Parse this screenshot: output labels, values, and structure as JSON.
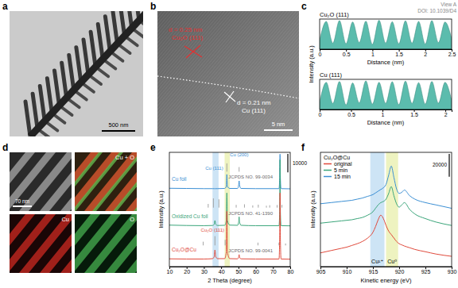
{
  "panel_labels": [
    "a",
    "b",
    "c",
    "d",
    "e",
    "f"
  ],
  "watermark": [
    "View A",
    "DOI: 10.1039/D4"
  ],
  "images": {
    "a": {
      "scale_bar": "500 nm"
    },
    "b": {
      "scale_bar": "5 nm",
      "annotations": [
        "d = 0.25 nm",
        "Cu₂O (111)",
        "d = 0.21 nm",
        "Cu (111)"
      ]
    },
    "d": {
      "scale_bar": "70 nm",
      "tiles": [
        "Cu + O",
        "Cu",
        "O"
      ]
    }
  },
  "chart_data": [
    {
      "type": "area",
      "title": "Cu₂O (111)",
      "x_label": "Distance (nm)",
      "y_label": "Intensity (a.u.)",
      "x": [
        0,
        0.125,
        0.25,
        0.375,
        0.5,
        0.625,
        0.75,
        0.875,
        1,
        1.125,
        1.25,
        1.375,
        1.5,
        1.625,
        1.75,
        1.875,
        2,
        2.125,
        2.25,
        2.375,
        2.5
      ],
      "values": [
        0.3,
        0.92,
        0.2,
        0.95,
        0.18,
        0.9,
        0.22,
        0.93,
        0.16,
        0.96,
        0.2,
        0.91,
        0.18,
        0.94,
        0.2,
        0.92,
        0.17,
        0.95,
        0.22,
        0.9,
        0.35
      ],
      "color": "#5bbcad",
      "xlim": [
        0,
        2.5
      ],
      "xticks": [
        0,
        0.5,
        1,
        1.5,
        2,
        2.5
      ],
      "ylim": [
        0,
        1
      ],
      "tick_labels": "x"
    },
    {
      "type": "area",
      "title": "Cu (111)",
      "x_label": "Distance (nm)",
      "x": [
        0,
        0.105,
        0.21,
        0.315,
        0.42,
        0.525,
        0.63,
        0.735,
        0.84,
        0.945,
        1.05,
        1.155,
        1.26,
        1.365,
        1.47,
        1.575,
        1.68,
        1.785,
        1.89,
        1.995,
        2.1
      ],
      "values": [
        0.25,
        0.9,
        0.2,
        0.93,
        0.15,
        0.88,
        0.22,
        0.95,
        0.18,
        0.9,
        0.2,
        0.92,
        0.16,
        0.94,
        0.2,
        0.89,
        0.18,
        0.93,
        0.21,
        0.9,
        0.3
      ],
      "color": "#5bbcad",
      "xlim": [
        0,
        2.1
      ],
      "xticks": [
        0,
        0.5,
        1,
        1.5,
        2
      ],
      "ylim": [
        0,
        1
      ],
      "tick_labels": "x"
    },
    {
      "type": "line",
      "x_label": "2 Theta (degree)",
      "y_label": "Intensity (a.u.)",
      "x": [
        10,
        20,
        30,
        35,
        36,
        36.4,
        36.8,
        38,
        42,
        43,
        43.3,
        43.6,
        45,
        49.5,
        50.1,
        50.4,
        50.7,
        51.5,
        60,
        73.5,
        73.9,
        74.1,
        74.3,
        74.7,
        80
      ],
      "series": [
        {
          "name": "Cu foil",
          "color": "#3b8fd4",
          "values": [
            42500,
            42400,
            42300,
            42300,
            42300,
            42300,
            42300,
            42300,
            42400,
            43500,
            50000,
            43500,
            42400,
            42400,
            44000,
            46500,
            44000,
            42400,
            42300,
            42300,
            48000,
            61000,
            48000,
            42300,
            42200
          ]
        },
        {
          "name": "Oxidized Cu foil",
          "color": "#3aa57a",
          "values": [
            22500,
            22300,
            22200,
            22300,
            23000,
            25000,
            23000,
            22300,
            22400,
            25000,
            40000,
            25000,
            22500,
            22400,
            24000,
            27000,
            24000,
            22400,
            22200,
            22200,
            30000,
            58000,
            30000,
            22200,
            22100
          ]
        },
        {
          "name": "Cu₂O@Cu",
          "color": "#e04a3c",
          "values": [
            4200,
            4100,
            4100,
            4300,
            5500,
            9000,
            5500,
            4300,
            4300,
            8000,
            30000,
            8000,
            4300,
            4200,
            5000,
            6500,
            5000,
            4200,
            4100,
            4100,
            15000,
            40000,
            15000,
            4100,
            4000
          ]
        }
      ],
      "references": [
        {
          "name": "JCPDS NO. 99-0034",
          "color": "#9a9a9a",
          "base": 51500,
          "x": [
            43.3,
            50.4,
            74.1
          ],
          "values": [
            56000,
            54000,
            53500
          ]
        },
        {
          "name": "JCPDS NO. 41-1390",
          "color": "#9a9a9a",
          "base": 32000,
          "x": [
            32.5,
            35.5,
            38.7,
            48.7,
            53.5,
            58.3,
            61.5,
            66.2,
            68.1,
            72.4,
            75.2
          ],
          "values": [
            34000,
            37000,
            36500,
            33500,
            33800,
            33200,
            33600,
            33000,
            33300,
            33400,
            33500
          ]
        },
        {
          "name": "JCPDS NO. 99-0041",
          "color": "#9a9a9a",
          "base": 11500,
          "x": [
            29.6,
            36.4,
            42.3,
            61.3,
            73.5,
            77.3
          ],
          "values": [
            13500,
            16500,
            14500,
            13000,
            13000,
            12500
          ]
        }
      ],
      "bands": [
        {
          "x0": 35,
          "x1": 38.5,
          "color": "#cde4f5"
        },
        {
          "x0": 42,
          "x1": 45,
          "color": "#eef3c0"
        }
      ],
      "annotations": [
        {
          "text": "Cu (111)",
          "x": 36,
          "y": 52500,
          "color": "#3b8fd4"
        },
        {
          "text": "Cu (200)",
          "x": 50.4,
          "y": 60000,
          "color": "#3b8fd4"
        },
        {
          "text": "Cu₂O (111)",
          "x": 35,
          "y": 19000,
          "color": "#e04a3c"
        }
      ],
      "scale_bar": 10000,
      "xlim": [
        10,
        80
      ],
      "xticks": [
        10,
        20,
        30,
        40,
        50,
        60,
        70,
        80
      ],
      "ylim": [
        0,
        62000
      ],
      "tick_labels": "x"
    },
    {
      "type": "line",
      "x_label": "Kinetic energy (eV)",
      "y_label": "Intensity (a.u.)",
      "legend": "upper left",
      "legend_title": "Cu₂O@Cu",
      "x": [
        905,
        907,
        909,
        910,
        911,
        912,
        913,
        914,
        915,
        915.5,
        916,
        916.5,
        917,
        917.5,
        918,
        918.5,
        919,
        919.5,
        920,
        920.5,
        921,
        922,
        923,
        925,
        927,
        930
      ],
      "series": [
        {
          "name": "original",
          "color": "#e04a3c",
          "values": [
            12000,
            14000,
            16000,
            17000,
            18500,
            20000,
            22000,
            25000,
            30000,
            35000,
            41000,
            45000,
            42000,
            36000,
            31000,
            28000,
            25000,
            22000,
            20000,
            19000,
            18000,
            16500,
            15000,
            13000,
            11000,
            9000
          ]
        },
        {
          "name": "5 min",
          "color": "#3aa57a",
          "values": [
            38000,
            39000,
            40000,
            40500,
            41000,
            42000,
            43000,
            45000,
            48000,
            51000,
            54000,
            56000,
            57000,
            59000,
            64000,
            70000,
            62000,
            55000,
            52000,
            54000,
            56000,
            50000,
            46000,
            42000,
            39000,
            36000
          ]
        },
        {
          "name": "15 min",
          "color": "#3b8fd4",
          "values": [
            55000,
            56000,
            57000,
            57500,
            58000,
            59000,
            60000,
            61500,
            63000,
            64500,
            66000,
            67500,
            69000,
            72000,
            80000,
            88000,
            78000,
            68000,
            64000,
            65000,
            67000,
            62000,
            59000,
            56000,
            54000,
            51000
          ]
        }
      ],
      "bands": [
        {
          "x0": 914.5,
          "x1": 917.2,
          "color": "#cde4f5",
          "label": "Cu¹⁺"
        },
        {
          "x0": 917.5,
          "x1": 919.8,
          "color": "#eef3c0",
          "label": "Cu⁰"
        }
      ],
      "scale_bar": 20000,
      "xlim": [
        905,
        930
      ],
      "xticks": [
        905,
        910,
        915,
        920,
        925,
        930
      ],
      "ylim": [
        0,
        100000
      ],
      "tick_labels": "x"
    }
  ]
}
